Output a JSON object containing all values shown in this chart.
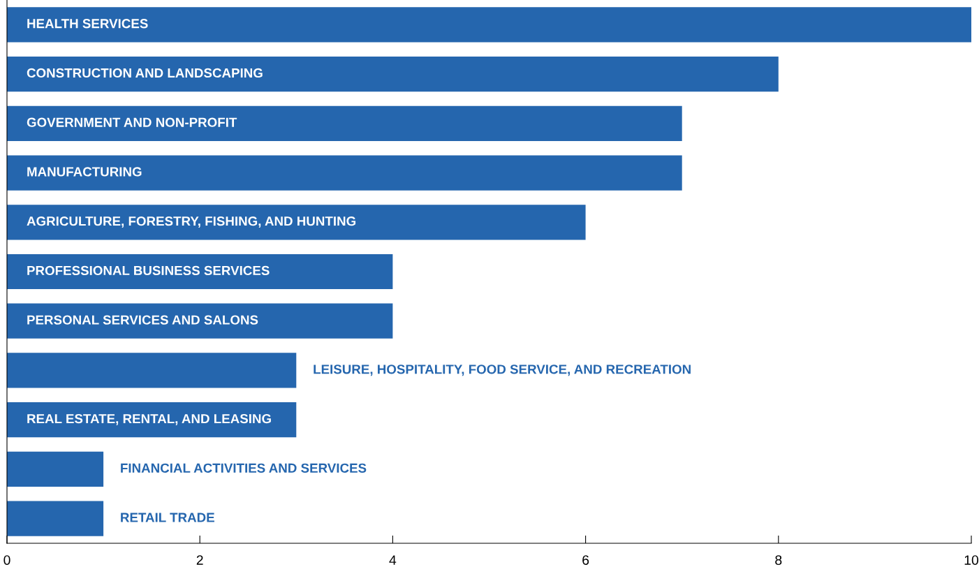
{
  "chart_data": {
    "type": "bar",
    "orientation": "horizontal",
    "categories": [
      "HEALTH SERVICES",
      "CONSTRUCTION AND LANDSCAPING",
      "GOVERNMENT AND NON-PROFIT",
      "MANUFACTURING",
      "AGRICULTURE, FORESTRY, FISHING, AND HUNTING",
      "PROFESSIONAL BUSINESS SERVICES",
      "PERSONAL SERVICES AND SALONS",
      "LEISURE, HOSPITALITY, FOOD SERVICE, AND RECREATION",
      "REAL ESTATE, RENTAL, AND LEASING",
      "FINANCIAL ACTIVITIES AND SERVICES",
      "RETAIL TRADE"
    ],
    "values": [
      10,
      8,
      7,
      7,
      6,
      4,
      4,
      3,
      3,
      1,
      1
    ],
    "color": "#2566ae",
    "xlim": [
      0,
      10
    ],
    "xticks": [
      0,
      2,
      4,
      6,
      8,
      10
    ],
    "tick_labels": "x",
    "grid": false,
    "legend": false
  }
}
